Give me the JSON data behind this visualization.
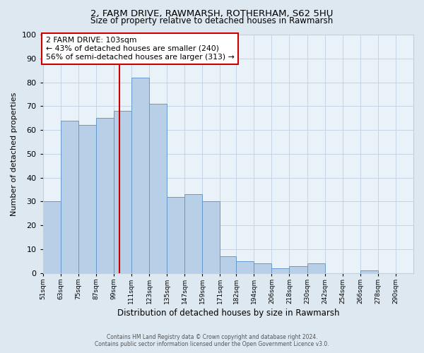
{
  "title1": "2, FARM DRIVE, RAWMARSH, ROTHERHAM, S62 5HU",
  "title2": "Size of property relative to detached houses in Rawmarsh",
  "xlabel": "Distribution of detached houses by size in Rawmarsh",
  "ylabel": "Number of detached properties",
  "bar_labels": [
    "51sqm",
    "63sqm",
    "75sqm",
    "87sqm",
    "99sqm",
    "111sqm",
    "123sqm",
    "135sqm",
    "147sqm",
    "159sqm",
    "171sqm",
    "182sqm",
    "194sqm",
    "206sqm",
    "218sqm",
    "230sqm",
    "242sqm",
    "254sqm",
    "266sqm",
    "278sqm",
    "290sqm"
  ],
  "bar_values": [
    30,
    64,
    62,
    65,
    68,
    82,
    71,
    32,
    33,
    30,
    7,
    5,
    4,
    2,
    3,
    4,
    0,
    0,
    1,
    0,
    0
  ],
  "bar_lefts": [
    51,
    63,
    75,
    87,
    99,
    111,
    123,
    135,
    147,
    159,
    171,
    182,
    194,
    206,
    218,
    230,
    242,
    254,
    266,
    278,
    290
  ],
  "bar_widths": [
    12,
    12,
    12,
    12,
    12,
    12,
    12,
    12,
    12,
    12,
    11,
    12,
    12,
    12,
    12,
    12,
    12,
    12,
    12,
    12,
    12
  ],
  "bar_color": "#b8cfe8",
  "bar_edge_color": "#6699cc",
  "red_line_x": 103,
  "annotation_title": "2 FARM DRIVE: 103sqm",
  "annotation_line1": "← 43% of detached houses are smaller (240)",
  "annotation_line2": "56% of semi-detached houses are larger (313) →",
  "annotation_box_color": "#ffffff",
  "annotation_box_edge": "#cc0000",
  "red_line_color": "#cc0000",
  "ylim": [
    0,
    100
  ],
  "yticks": [
    0,
    10,
    20,
    30,
    40,
    50,
    60,
    70,
    80,
    90,
    100
  ],
  "grid_color": "#c0d0e0",
  "background_color": "#dde8f0",
  "plot_bg_color": "#e8f2f8",
  "footer1": "Contains HM Land Registry data © Crown copyright and database right 2024.",
  "footer2": "Contains public sector information licensed under the Open Government Licence v3.0."
}
